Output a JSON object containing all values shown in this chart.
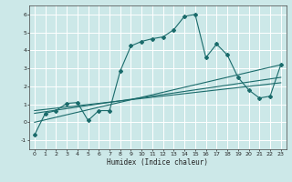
{
  "xlabel": "Humidex (Indice chaleur)",
  "ylabel": "",
  "bg_color": "#cce8e8",
  "line_color": "#1a6b6b",
  "grid_color": "#ffffff",
  "xlim": [
    -0.5,
    23.5
  ],
  "ylim": [
    -1.5,
    6.5
  ],
  "xticks": [
    0,
    1,
    2,
    3,
    4,
    5,
    6,
    7,
    8,
    9,
    10,
    11,
    12,
    13,
    14,
    15,
    16,
    17,
    18,
    19,
    20,
    21,
    22,
    23
  ],
  "yticks": [
    -1,
    0,
    1,
    2,
    3,
    4,
    5,
    6
  ],
  "series1_x": [
    0,
    1,
    2,
    3,
    4,
    5,
    6,
    7,
    8,
    9,
    10,
    11,
    12,
    13,
    14,
    15,
    16,
    17,
    18,
    19,
    20,
    21,
    22,
    23
  ],
  "series1_y": [
    -0.7,
    0.5,
    0.65,
    1.05,
    1.1,
    0.1,
    0.65,
    0.65,
    2.85,
    4.25,
    4.5,
    4.65,
    4.75,
    5.15,
    5.9,
    6.0,
    3.6,
    4.35,
    3.75,
    2.5,
    1.8,
    1.35,
    1.45,
    3.2
  ],
  "series2_x": [
    0,
    23
  ],
  "series2_y": [
    0.0,
    3.2
  ],
  "series3_x": [
    0,
    23
  ],
  "series3_y": [
    0.5,
    2.5
  ],
  "series4_x": [
    0,
    23
  ],
  "series4_y": [
    0.65,
    2.2
  ]
}
